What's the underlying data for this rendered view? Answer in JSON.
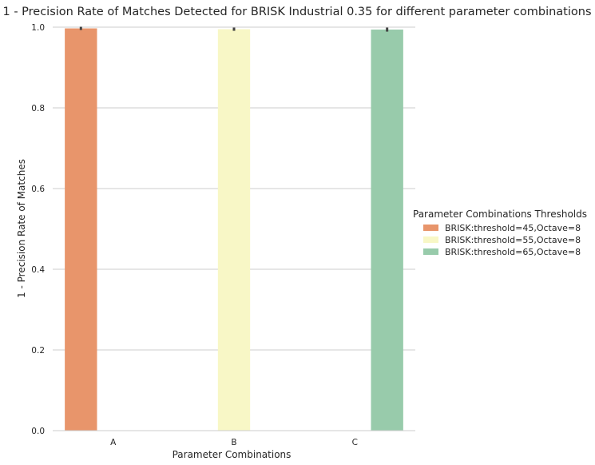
{
  "chart_data": {
    "type": "bar",
    "title": "1 - Precision Rate of Matches Detected for BRISK Industrial 0.35 for different parameter combinations",
    "xlabel": "Parameter Combinations",
    "ylabel": "1 - Precision Rate of Matches",
    "categories": [
      "A",
      "B",
      "C"
    ],
    "ylim": [
      0,
      1.0
    ],
    "yticks": [
      "0.0",
      "0.2",
      "0.4",
      "0.6",
      "0.8",
      "1.0"
    ],
    "grid": true,
    "legend": {
      "title": "Parameter Combinations Thresholds",
      "placement": "right"
    },
    "series": [
      {
        "name": "BRISK:threshold=45,Octave=8",
        "color": "#e8956b",
        "values": [
          0.997,
          null,
          null
        ],
        "err": [
          0.004,
          null,
          null
        ]
      },
      {
        "name": "BRISK:threshold=55,Octave=8",
        "color": "#f8f7c6",
        "values": [
          null,
          0.995,
          null
        ],
        "err": [
          null,
          0.004,
          null
        ]
      },
      {
        "name": "BRISK:threshold=65,Octave=8",
        "color": "#98cbab",
        "values": [
          null,
          null,
          0.994
        ],
        "err": [
          null,
          null,
          0.005
        ]
      }
    ]
  }
}
